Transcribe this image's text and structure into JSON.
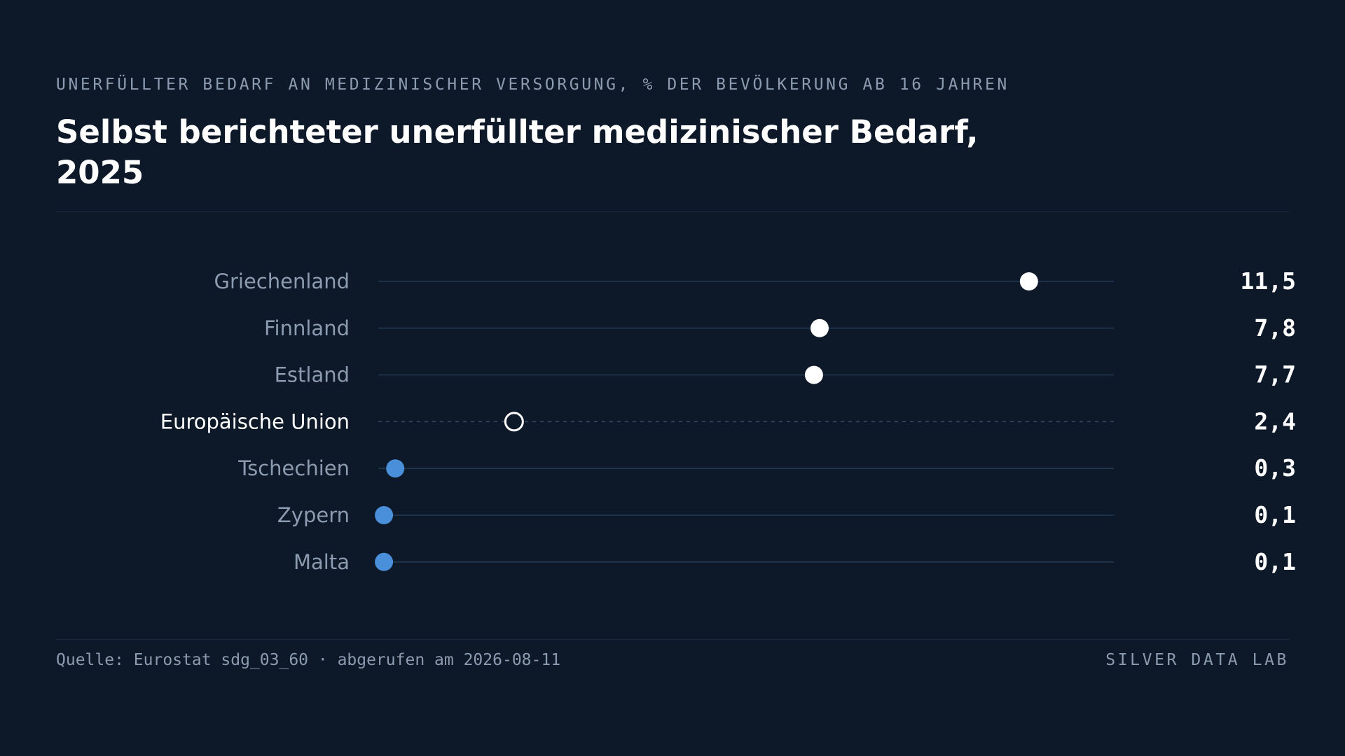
{
  "header": {
    "subtitle": "UNERFÜLLTER BEDARF AN MEDIZINISCHER VERSORGUNG, % DER BEVÖLKERUNG AB 16 JAHREN",
    "title": "Selbst berichteter unerfüllter medizinischer Bedarf, 2025"
  },
  "footer": {
    "source": "Quelle: Eurostat sdg_03_60 · abgerufen am 2026-08-11",
    "brand": "SILVER DATA LAB"
  },
  "colors": {
    "background": "#0d1929",
    "high": "#ffffff",
    "low": "#4a8fd9",
    "reference": "#ffffff",
    "track": "#233a52",
    "label": "#8d9bb1"
  },
  "chart_data": {
    "type": "dot",
    "title": "Selbst berichteter unerfüllter medizinischer Bedarf, 2025",
    "subtitle": "UNERFÜLLTER BEDARF AN MEDIZINISCHER VERSORGUNG, % DER BEVÖLKERUNG AB 16 JAHREN",
    "xlim": [
      0,
      13
    ],
    "grid": false,
    "categories": [
      "Griechenland",
      "Finnland",
      "Estland",
      "Europäische Union",
      "Tschechien",
      "Zypern",
      "Malta"
    ],
    "values": [
      11.5,
      7.8,
      7.7,
      2.4,
      0.3,
      0.1,
      0.1
    ],
    "value_labels": [
      "11,5",
      "7,8",
      "7,7",
      "2,4",
      "0,3",
      "0,1",
      "0,1"
    ],
    "reference_category": "Europäische Union"
  }
}
